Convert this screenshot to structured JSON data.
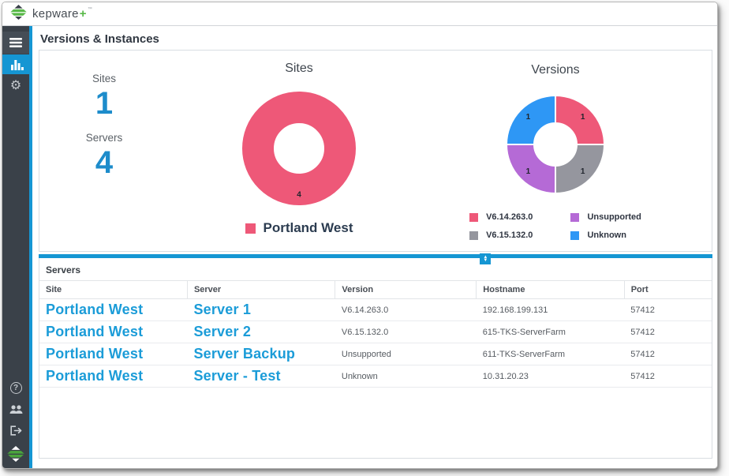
{
  "header": {
    "brand": "kepware",
    "brand_plus": "+",
    "trademark": "™"
  },
  "sidebar": {
    "top_items": [
      {
        "icon": "hamburger-menu-icon",
        "active": false
      },
      {
        "icon": "bar-chart-icon",
        "active": true
      },
      {
        "icon": "gear-icon",
        "active": false
      }
    ],
    "bottom_items": [
      {
        "icon": "help-icon"
      },
      {
        "icon": "users-icon"
      },
      {
        "icon": "logout-icon"
      },
      {
        "icon": "kepware-logo-icon"
      }
    ]
  },
  "page": {
    "title": "Versions & Instances"
  },
  "stats": [
    {
      "label": "Sites",
      "value": "1"
    },
    {
      "label": "Servers",
      "value": "4"
    }
  ],
  "chart_data": [
    {
      "type": "donut",
      "title": "Sites",
      "labels": [
        "Portland West"
      ],
      "values": [
        4
      ],
      "colors": [
        "#ee5878"
      ],
      "legend_position": "bottom",
      "legend_style": "large",
      "show_values": true
    },
    {
      "type": "donut",
      "title": "Versions",
      "labels": [
        "V6.14.263.0",
        "V6.15.132.0",
        "Unsupported",
        "Unknown"
      ],
      "values": [
        1,
        1,
        1,
        1
      ],
      "colors": [
        "#ee5878",
        "#95969e",
        "#b56ad6",
        "#2e97f5"
      ],
      "legend_position": "bottom",
      "legend_columns": 2,
      "legend_style": "small",
      "show_values": true
    }
  ],
  "splitter": {
    "icon": "resize-up-down-icon",
    "arrows_up": "▲",
    "arrows_down": "▼"
  },
  "table": {
    "title": "Servers",
    "columns": [
      "Site",
      "Server",
      "Version",
      "Hostname",
      "Port"
    ],
    "column_widths": [
      "22%",
      "22%",
      "21%",
      "22%",
      "13%"
    ],
    "rows": [
      [
        "Portland West",
        "Server 1",
        "V6.14.263.0",
        "192.168.199.131",
        "57412"
      ],
      [
        "Portland West",
        "Server 2",
        "V6.15.132.0",
        "615-TKS-ServerFarm",
        "57412"
      ],
      [
        "Portland West",
        "Server Backup",
        "Unsupported",
        "611-TKS-ServerFarm",
        "57412"
      ],
      [
        "Portland West",
        "Server - Test",
        "Unknown",
        "10.31.20.23",
        "57412"
      ]
    ]
  },
  "colors": {
    "accent_blue": "#1596d3",
    "link_blue": "#1b9cd8",
    "stat_blue": "#1d8ccb",
    "sidebar_dark": "#3a4149",
    "brand_green": "#57b847",
    "pink": "#ee5878",
    "gray_slice": "#95969e",
    "purple_slice": "#b56ad6",
    "blue_slice": "#2e97f5"
  }
}
